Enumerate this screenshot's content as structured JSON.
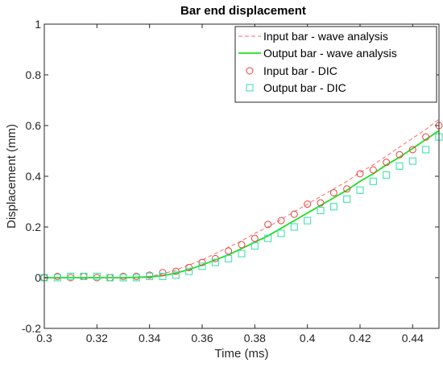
{
  "chart_data": {
    "type": "line",
    "title": "Bar end displacement",
    "xlabel": "Time (ms)",
    "ylabel": "Displacement (mm)",
    "xlim": [
      0.3,
      0.45
    ],
    "ylim": [
      -0.2,
      1
    ],
    "xticks": [
      0.3,
      0.32,
      0.34,
      0.36,
      0.38,
      0.4,
      0.42,
      0.44
    ],
    "xtick_labels": [
      "0.3",
      "0.32",
      "0.34",
      "0.36",
      "0.38",
      "0.4",
      "0.42",
      "0.44"
    ],
    "yticks": [
      -0.2,
      0,
      0.2,
      0.4,
      0.6,
      0.8,
      1
    ],
    "ytick_labels": [
      "-0.2",
      "0",
      "0.2",
      "0.4",
      "0.6",
      "0.8",
      "1"
    ],
    "grid": false,
    "legend_position": "top-right",
    "series": [
      {
        "name": "Input bar - wave analysis",
        "style": "dashed-line",
        "color": "#ff6b6b",
        "x": [
          0.3,
          0.31,
          0.32,
          0.33,
          0.335,
          0.34,
          0.345,
          0.35,
          0.355,
          0.36,
          0.365,
          0.37,
          0.375,
          0.38,
          0.385,
          0.39,
          0.395,
          0.4,
          0.405,
          0.41,
          0.415,
          0.42,
          0.425,
          0.43,
          0.435,
          0.44,
          0.445,
          0.45
        ],
        "y": [
          0.0,
          0.0,
          0.0,
          0.0,
          0.0,
          0.005,
          0.015,
          0.03,
          0.05,
          0.07,
          0.095,
          0.12,
          0.145,
          0.175,
          0.2,
          0.23,
          0.26,
          0.29,
          0.32,
          0.35,
          0.38,
          0.415,
          0.445,
          0.48,
          0.515,
          0.55,
          0.585,
          0.625
        ]
      },
      {
        "name": "Output bar - wave analysis",
        "style": "solid-line",
        "color": "#22dd22",
        "x": [
          0.3,
          0.31,
          0.32,
          0.33,
          0.34,
          0.345,
          0.35,
          0.355,
          0.36,
          0.365,
          0.37,
          0.375,
          0.38,
          0.385,
          0.39,
          0.395,
          0.4,
          0.405,
          0.41,
          0.415,
          0.42,
          0.425,
          0.43,
          0.435,
          0.44,
          0.445,
          0.45
        ],
        "y": [
          0.0,
          0.0,
          0.0,
          0.0,
          0.003,
          0.008,
          0.018,
          0.032,
          0.05,
          0.07,
          0.09,
          0.115,
          0.14,
          0.165,
          0.195,
          0.225,
          0.255,
          0.285,
          0.315,
          0.345,
          0.38,
          0.41,
          0.445,
          0.475,
          0.51,
          0.545,
          0.58
        ]
      },
      {
        "name": "Input bar - DIC",
        "style": "circle-markers",
        "color": "#e8403a",
        "x": [
          0.3,
          0.305,
          0.31,
          0.315,
          0.32,
          0.325,
          0.33,
          0.335,
          0.34,
          0.345,
          0.35,
          0.355,
          0.36,
          0.365,
          0.37,
          0.375,
          0.38,
          0.385,
          0.39,
          0.395,
          0.4,
          0.405,
          0.41,
          0.415,
          0.42,
          0.425,
          0.43,
          0.435,
          0.44,
          0.445,
          0.45
        ],
        "y": [
          0.0,
          0.005,
          0.0,
          0.005,
          0.0,
          0.0,
          0.005,
          0.005,
          0.01,
          0.02,
          0.025,
          0.04,
          0.06,
          0.075,
          0.105,
          0.13,
          0.155,
          0.21,
          0.225,
          0.25,
          0.29,
          0.295,
          0.335,
          0.35,
          0.41,
          0.425,
          0.455,
          0.485,
          0.505,
          0.555,
          0.6
        ]
      },
      {
        "name": "Output bar - DIC",
        "style": "square-markers",
        "color": "#2fe0a8",
        "x": [
          0.3,
          0.305,
          0.31,
          0.315,
          0.32,
          0.325,
          0.33,
          0.335,
          0.34,
          0.345,
          0.35,
          0.355,
          0.36,
          0.365,
          0.37,
          0.375,
          0.38,
          0.385,
          0.39,
          0.395,
          0.4,
          0.405,
          0.41,
          0.415,
          0.42,
          0.425,
          0.43,
          0.435,
          0.44,
          0.445,
          0.45
        ],
        "y": [
          0.0,
          0.0,
          0.005,
          0.005,
          0.005,
          0.0,
          0.0,
          0.0,
          0.005,
          0.005,
          0.01,
          0.025,
          0.045,
          0.06,
          0.075,
          0.095,
          0.125,
          0.155,
          0.175,
          0.2,
          0.225,
          0.265,
          0.28,
          0.31,
          0.345,
          0.38,
          0.405,
          0.44,
          0.46,
          0.505,
          0.555
        ]
      }
    ]
  }
}
